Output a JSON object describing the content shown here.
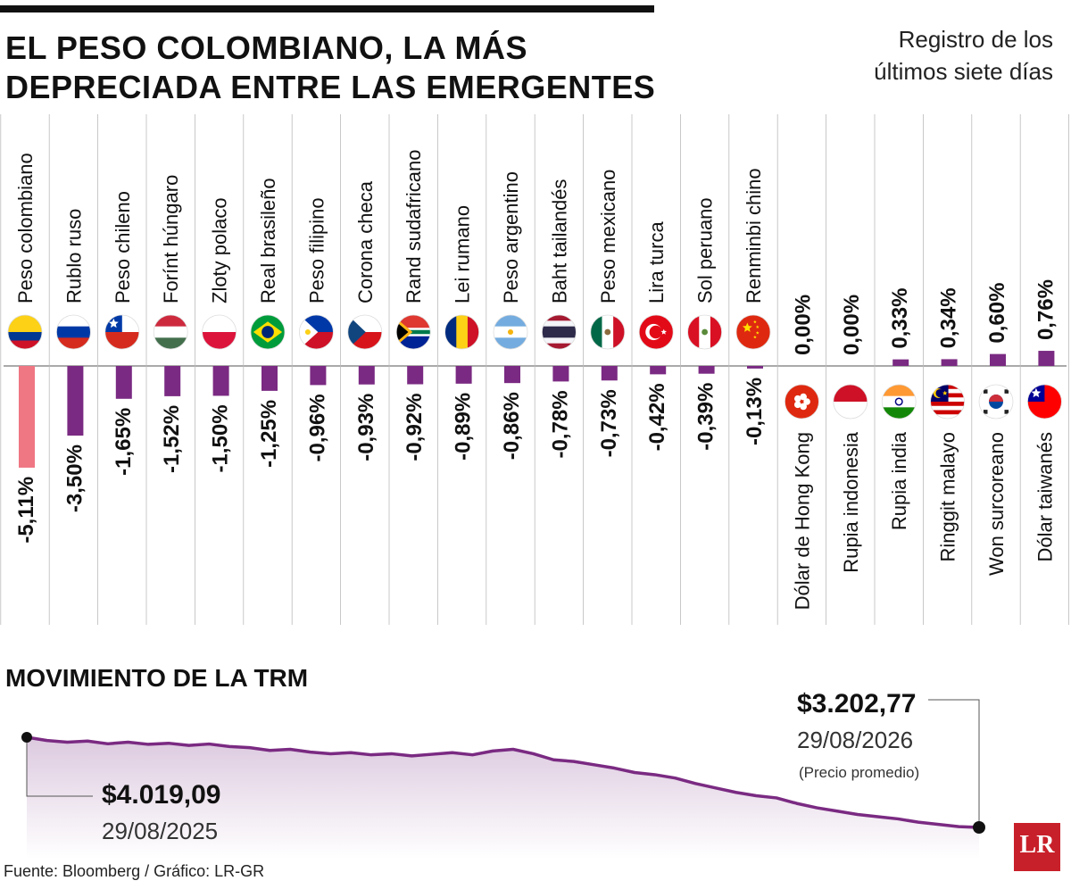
{
  "header": {
    "title_line1": "EL PESO COLOMBIANO, LA MÁS",
    "title_line2": "DEPRECIADA ENTRE LAS EMERGENTES",
    "subtitle_line1": "Registro de los",
    "subtitle_line2": "últimos siete días"
  },
  "colors": {
    "highlight": "#ef7683",
    "bar": "#7a2a82",
    "line": "#7a2a82",
    "area_top": "#dcc9df",
    "divider": "#bbbbbb"
  },
  "chart_data": [
    {
      "type": "bar",
      "title": "EL PESO COLOMBIANO, LA MÁS DEPRECIADA ENTRE LAS EMERGENTES",
      "subtitle": "Registro de los últimos siete días",
      "categories": [
        "Peso colombiano",
        "Rublo ruso",
        "Peso chileno",
        "Forínt húngaro",
        "Zloty polaco",
        "Real brasileño",
        "Peso filipino",
        "Corona checa",
        "Rand sudafricano",
        "Lei rumano",
        "Peso argentino",
        "Baht tailandés",
        "Peso mexicano",
        "Lira turca",
        "Sol peruano",
        "Renminbi chino",
        "Dólar de Hong Kong",
        "Rupia indonesia",
        "Rupia india",
        "Ringgit malayo",
        "Won surcoreano",
        "Dólar taiwanés"
      ],
      "values": [
        -5.11,
        -3.5,
        -1.65,
        -1.52,
        -1.5,
        -1.25,
        -0.96,
        -0.93,
        -0.92,
        -0.89,
        -0.86,
        -0.78,
        -0.73,
        -0.42,
        -0.39,
        -0.13,
        0.0,
        0.0,
        0.33,
        0.34,
        0.6,
        0.76
      ],
      "value_labels": [
        "-5,11%",
        "-3,50%",
        "-1,65%",
        "-1,52%",
        "-1,50%",
        "-1,25%",
        "-0,96%",
        "-0,93%",
        "-0,92%",
        "-0,89%",
        "-0,86%",
        "-0,78%",
        "-0,73%",
        "-0,42%",
        "-0,39%",
        "-0,13%",
        "0,00%",
        "0,00%",
        "0,33%",
        "0,34%",
        "0,60%",
        "0,76%"
      ],
      "flags": [
        "colombia-flag-icon",
        "russia-flag-icon",
        "chile-flag-icon",
        "hungary-flag-icon",
        "poland-flag-icon",
        "brazil-flag-icon",
        "philippines-flag-icon",
        "czech-flag-icon",
        "south-africa-flag-icon",
        "romania-flag-icon",
        "argentina-flag-icon",
        "thailand-flag-icon",
        "mexico-flag-icon",
        "turkey-flag-icon",
        "peru-flag-icon",
        "china-flag-icon",
        "hong-kong-flag-icon",
        "indonesia-flag-icon",
        "india-flag-icon",
        "malaysia-flag-icon",
        "south-korea-flag-icon",
        "taiwan-flag-icon"
      ],
      "highlight_index": 0
    },
    {
      "type": "area",
      "title": "MOVIMIENTO DE LA TRM",
      "x_start": "29/08/2025",
      "x_end": "29/08/2026",
      "y_start": 4019.09,
      "y_end": 3202.77,
      "y_approx": [
        4019,
        3990,
        3975,
        3985,
        3960,
        3975,
        3955,
        3965,
        3945,
        3958,
        3935,
        3925,
        3900,
        3910,
        3885,
        3870,
        3880,
        3860,
        3870,
        3850,
        3865,
        3880,
        3860,
        3895,
        3910,
        3870,
        3815,
        3800,
        3770,
        3740,
        3700,
        3680,
        3650,
        3600,
        3560,
        3520,
        3490,
        3470,
        3420,
        3380,
        3350,
        3320,
        3300,
        3280,
        3250,
        3230,
        3210,
        3202.77
      ]
    }
  ],
  "trm": {
    "section_title": "MOVIMIENTO DE LA TRM",
    "start_value": "$4.019,09",
    "start_date": "29/08/2025",
    "end_value": "$3.202,77",
    "end_date": "29/08/2026",
    "end_note": "(Precio promedio)"
  },
  "footer": {
    "source": "Fuente: Bloomberg / Gráfico: LR-GR",
    "logo_text": "LR"
  }
}
